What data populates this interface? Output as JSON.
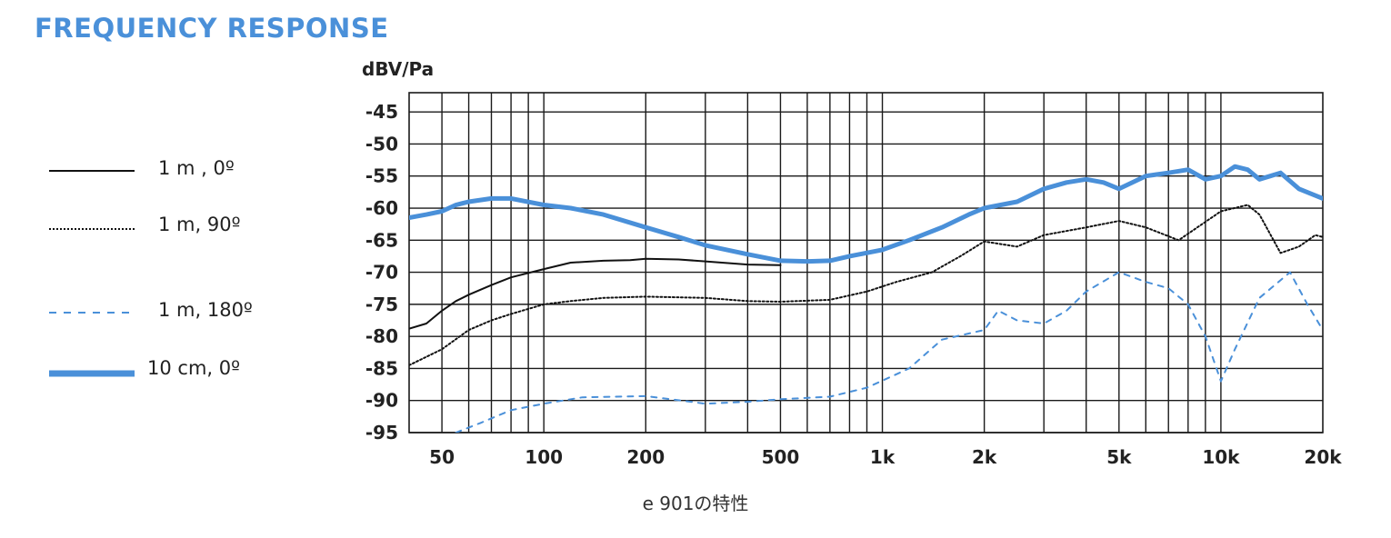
{
  "title": "FREQUENCY RESPONSE",
  "caption": "e 901の特性",
  "chart_data": {
    "type": "line",
    "ylabel": "dBV/Pa",
    "xscale": "log",
    "xlim": [
      40,
      20000
    ],
    "ylim": [
      -95,
      -42
    ],
    "grid": true,
    "legend_position": "left",
    "y_ticks": [
      -45,
      -50,
      -55,
      -60,
      -65,
      -70,
      -75,
      -80,
      -85,
      -90,
      -95
    ],
    "x_ticks": [
      {
        "value": 50,
        "label": "50"
      },
      {
        "value": 100,
        "label": "100"
      },
      {
        "value": 200,
        "label": "200"
      },
      {
        "value": 500,
        "label": "500"
      },
      {
        "value": 1000,
        "label": "1k"
      },
      {
        "value": 2000,
        "label": "2k"
      },
      {
        "value": 5000,
        "label": "5k"
      },
      {
        "value": 10000,
        "label": "10k"
      },
      {
        "value": 20000,
        "label": "20k"
      }
    ],
    "series": [
      {
        "name": "1 m , 0º",
        "color": "#111111",
        "style": "solid-thin",
        "points": [
          [
            40,
            -78.8
          ],
          [
            45,
            -78
          ],
          [
            50,
            -76
          ],
          [
            55,
            -74.5
          ],
          [
            60,
            -73.5
          ],
          [
            70,
            -72
          ],
          [
            80,
            -70.8
          ],
          [
            100,
            -69.5
          ],
          [
            120,
            -68.5
          ],
          [
            150,
            -68.2
          ],
          [
            180,
            -68.1
          ],
          [
            200,
            -67.9
          ],
          [
            250,
            -68
          ],
          [
            300,
            -68.3
          ],
          [
            400,
            -68.8
          ],
          [
            500,
            -68.9
          ]
        ]
      },
      {
        "name": "1 m, 90º",
        "color": "#111111",
        "style": "dotted",
        "points": [
          [
            40,
            -84.5
          ],
          [
            50,
            -82
          ],
          [
            60,
            -79
          ],
          [
            70,
            -77.5
          ],
          [
            80,
            -76.5
          ],
          [
            100,
            -75
          ],
          [
            120,
            -74.5
          ],
          [
            150,
            -74
          ],
          [
            200,
            -73.8
          ],
          [
            300,
            -74
          ],
          [
            400,
            -74.5
          ],
          [
            500,
            -74.6
          ],
          [
            700,
            -74.3
          ],
          [
            900,
            -73
          ],
          [
            1100,
            -71.5
          ],
          [
            1400,
            -70
          ],
          [
            1700,
            -67.5
          ],
          [
            2000,
            -65.2
          ],
          [
            2500,
            -66
          ],
          [
            3000,
            -64.2
          ],
          [
            4000,
            -63
          ],
          [
            5000,
            -62
          ],
          [
            6000,
            -63
          ],
          [
            7500,
            -65
          ],
          [
            10000,
            -60.5
          ],
          [
            12000,
            -59.5
          ],
          [
            13000,
            -61
          ],
          [
            15000,
            -67
          ],
          [
            17000,
            -66
          ],
          [
            19000,
            -64.2
          ],
          [
            20000,
            -64.5
          ]
        ]
      },
      {
        "name": "1 m, 180º",
        "color": "#4a90d9",
        "style": "dashed",
        "points": [
          [
            55,
            -95
          ],
          [
            65,
            -93.5
          ],
          [
            80,
            -91.5
          ],
          [
            100,
            -90.5
          ],
          [
            130,
            -89.5
          ],
          [
            200,
            -89.3
          ],
          [
            300,
            -90.5
          ],
          [
            400,
            -90.2
          ],
          [
            500,
            -89.8
          ],
          [
            700,
            -89.4
          ],
          [
            900,
            -88
          ],
          [
            1200,
            -85
          ],
          [
            1500,
            -80.5
          ],
          [
            2000,
            -79
          ],
          [
            2200,
            -76
          ],
          [
            2500,
            -77.5
          ],
          [
            3000,
            -78
          ],
          [
            3500,
            -76
          ],
          [
            4000,
            -73
          ],
          [
            5000,
            -70
          ],
          [
            6000,
            -71.5
          ],
          [
            7000,
            -72.5
          ],
          [
            8000,
            -75
          ],
          [
            9000,
            -80
          ],
          [
            10000,
            -87
          ],
          [
            11000,
            -82
          ],
          [
            13000,
            -74
          ],
          [
            16000,
            -70
          ],
          [
            18000,
            -75
          ],
          [
            20000,
            -79
          ]
        ]
      },
      {
        "name": "10 cm, 0º",
        "color": "#4a90d9",
        "style": "solid-thick",
        "points": [
          [
            40,
            -61.5
          ],
          [
            45,
            -61
          ],
          [
            50,
            -60.5
          ],
          [
            55,
            -59.5
          ],
          [
            60,
            -59
          ],
          [
            70,
            -58.5
          ],
          [
            80,
            -58.5
          ],
          [
            100,
            -59.5
          ],
          [
            120,
            -60
          ],
          [
            150,
            -61
          ],
          [
            200,
            -63
          ],
          [
            250,
            -64.5
          ],
          [
            300,
            -65.8
          ],
          [
            400,
            -67.2
          ],
          [
            500,
            -68.2
          ],
          [
            600,
            -68.3
          ],
          [
            700,
            -68.2
          ],
          [
            800,
            -67.5
          ],
          [
            1000,
            -66.5
          ],
          [
            1200,
            -65
          ],
          [
            1500,
            -63
          ],
          [
            1800,
            -61
          ],
          [
            2000,
            -60
          ],
          [
            2500,
            -59
          ],
          [
            3000,
            -57
          ],
          [
            3500,
            -56
          ],
          [
            4000,
            -55.5
          ],
          [
            4500,
            -56
          ],
          [
            5000,
            -57
          ],
          [
            6000,
            -55
          ],
          [
            7000,
            -54.5
          ],
          [
            8000,
            -54
          ],
          [
            9000,
            -55.5
          ],
          [
            10000,
            -55
          ],
          [
            11000,
            -53.5
          ],
          [
            12000,
            -54
          ],
          [
            13000,
            -55.5
          ],
          [
            14000,
            -55
          ],
          [
            15000,
            -54.5
          ],
          [
            17000,
            -57
          ],
          [
            20000,
            -58.5
          ]
        ]
      }
    ]
  }
}
